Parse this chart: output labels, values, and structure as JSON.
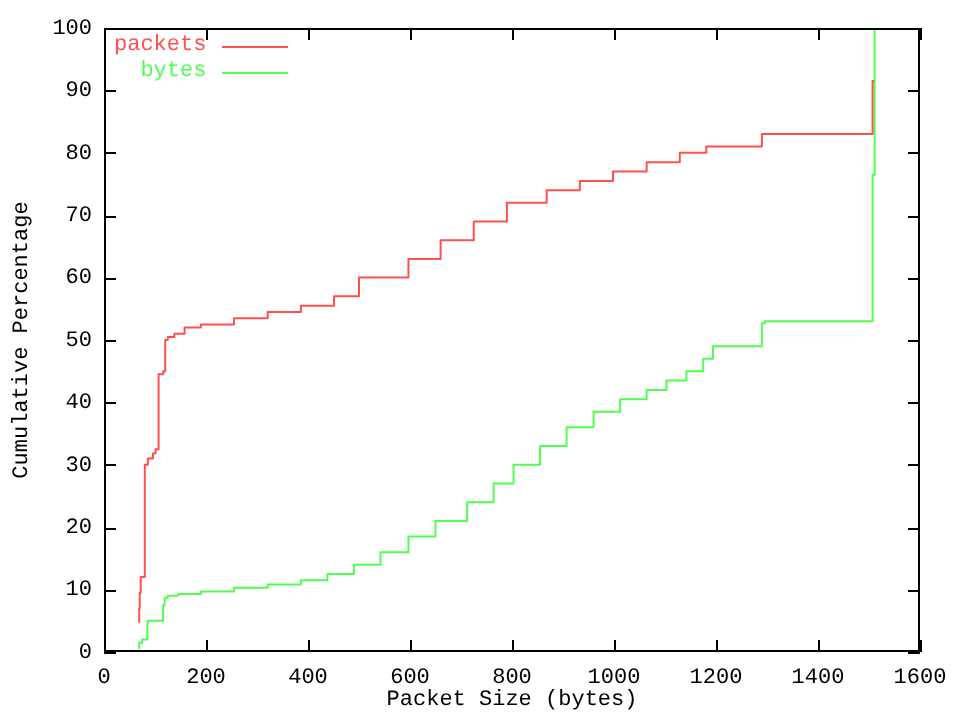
{
  "chart_data": {
    "type": "step",
    "xlabel": "Packet Size (bytes)",
    "ylabel": "Cumulative Percentage",
    "xlim": [
      0,
      1600
    ],
    "xticks": [
      0,
      200,
      400,
      600,
      800,
      1000,
      1200,
      1400,
      1600
    ],
    "ylim": [
      0,
      100
    ],
    "yticks": [
      0,
      10,
      20,
      30,
      40,
      50,
      60,
      70,
      80,
      90,
      100
    ],
    "grid": false,
    "legend": "top left",
    "marker": "none",
    "line_style": "solid",
    "series": [
      {
        "name": "packets",
        "color": "#ff5050",
        "x": [
          69,
          70,
          72,
          74,
          80,
          86,
          96,
          101,
          107,
          116,
          120,
          125,
          138,
          158,
          190,
          255,
          321,
          386,
          451,
          500,
          597,
          660,
          725,
          790,
          868,
          933,
          998,
          1064,
          1129,
          1181,
          1220,
          1290,
          1296,
          1507,
          1510
        ],
        "values": [
          4.7,
          7,
          9.5,
          12,
          12,
          30,
          31,
          31.8,
          32.5,
          44.5,
          45,
          50,
          50.5,
          51,
          52,
          52.5,
          53.5,
          54.5,
          55.5,
          57,
          60,
          63,
          66,
          69,
          72,
          74,
          75.5,
          77,
          78.5,
          80,
          81,
          81,
          83,
          83,
          91.5
        ]
      },
      {
        "name": "bytes",
        "color": "#50ff50",
        "x": [
          69,
          75,
          85,
          86,
          116,
          119,
          125,
          145,
          190,
          255,
          321,
          386,
          438,
          490,
          542,
          597,
          650,
          712,
          764,
          803,
          855,
          907,
          960,
          1012,
          1064,
          1103,
          1142,
          1175,
          1194,
          1227,
          1290,
          1296,
          1507,
          1511,
          1514
        ],
        "values": [
          0.5,
          1.5,
          2,
          4.5,
          5,
          7.5,
          8.7,
          9,
          9.3,
          9.7,
          10.3,
          10.8,
          11.5,
          12.5,
          14,
          16,
          18.5,
          21,
          24,
          27,
          30,
          33,
          36,
          38.5,
          40.5,
          42,
          43.5,
          45,
          47,
          49,
          49,
          52.7,
          53,
          76.5,
          100
        ]
      }
    ]
  }
}
